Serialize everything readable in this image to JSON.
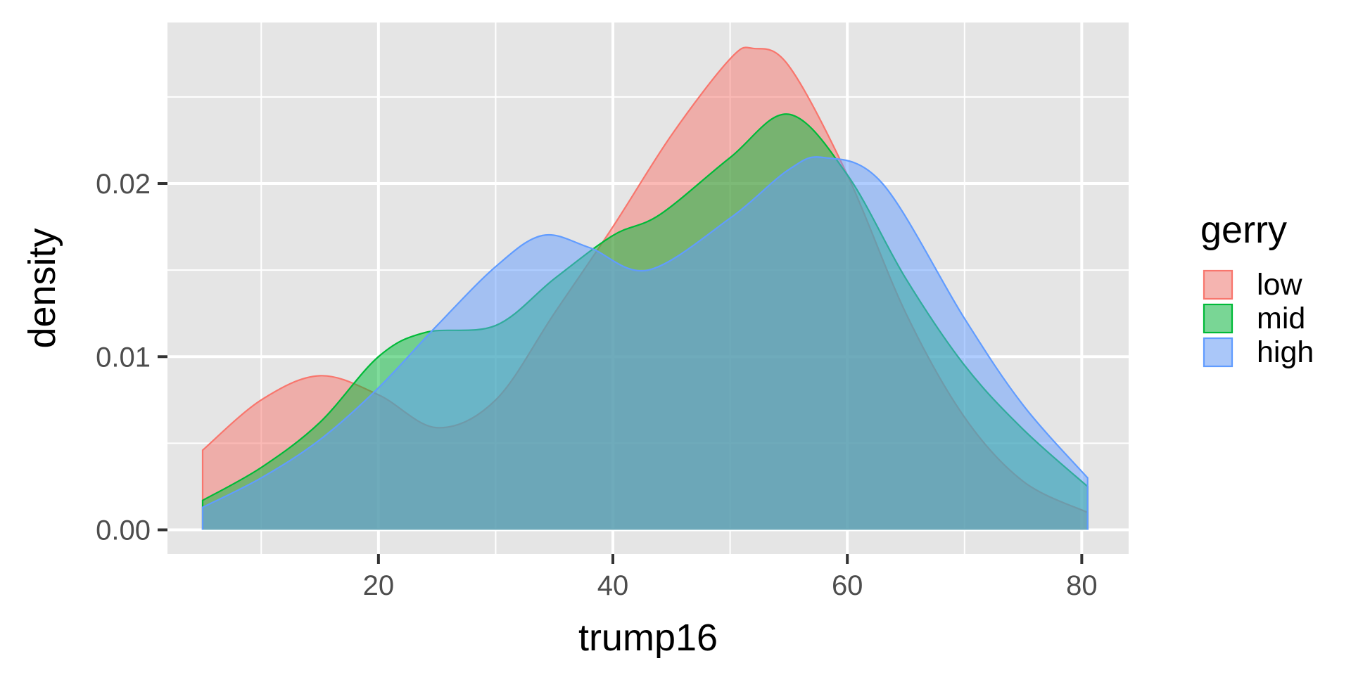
{
  "chart_data": {
    "type": "area",
    "subtype": "density",
    "xlabel": "trump16",
    "ylabel": "density",
    "xlim": [
      2.0,
      84.0
    ],
    "ylim": [
      -0.0014,
      0.0293
    ],
    "x_ticks": [
      20,
      40,
      60,
      80
    ],
    "x_minor_ticks": [
      10,
      30,
      50,
      70
    ],
    "y_ticks": [
      0.0,
      0.01,
      0.02
    ],
    "y_tick_labels": [
      "0.00",
      "0.01",
      "0.02"
    ],
    "y_minor_ticks": [
      0.005,
      0.015,
      0.025
    ],
    "grid": true,
    "panel_background": "#e5e5e5",
    "fill_opacity": 0.5,
    "legend": {
      "title": "gerry",
      "position": "right"
    },
    "series": [
      {
        "name": "low",
        "color": "#f8766d",
        "x": [
          5,
          10,
          15,
          20,
          25,
          30,
          35,
          40,
          45,
          50,
          52,
          55,
          60,
          65,
          70,
          75,
          80.5
        ],
        "y": [
          0.0046,
          0.0075,
          0.0089,
          0.0078,
          0.0059,
          0.0075,
          0.0125,
          0.0175,
          0.0228,
          0.0272,
          0.0278,
          0.0268,
          0.0205,
          0.0125,
          0.0065,
          0.0028,
          0.001
        ]
      },
      {
        "name": "mid",
        "color": "#00ba38",
        "x": [
          5,
          10,
          15,
          20,
          24,
          30,
          35,
          40,
          44,
          50,
          55,
          60,
          65,
          70,
          75,
          80.5
        ],
        "y": [
          0.0017,
          0.0036,
          0.0062,
          0.01,
          0.0114,
          0.0118,
          0.0145,
          0.017,
          0.0182,
          0.0215,
          0.024,
          0.0205,
          0.0145,
          0.0095,
          0.0058,
          0.0025
        ]
      },
      {
        "name": "high",
        "color": "#619cff",
        "x": [
          5,
          10,
          15,
          20,
          25,
          30,
          34,
          38,
          43,
          50,
          55,
          58,
          63,
          70,
          75,
          80.5
        ],
        "y": [
          0.0013,
          0.003,
          0.0052,
          0.0082,
          0.0118,
          0.0152,
          0.017,
          0.0163,
          0.015,
          0.018,
          0.0208,
          0.0215,
          0.02,
          0.0122,
          0.0072,
          0.003
        ]
      }
    ]
  }
}
